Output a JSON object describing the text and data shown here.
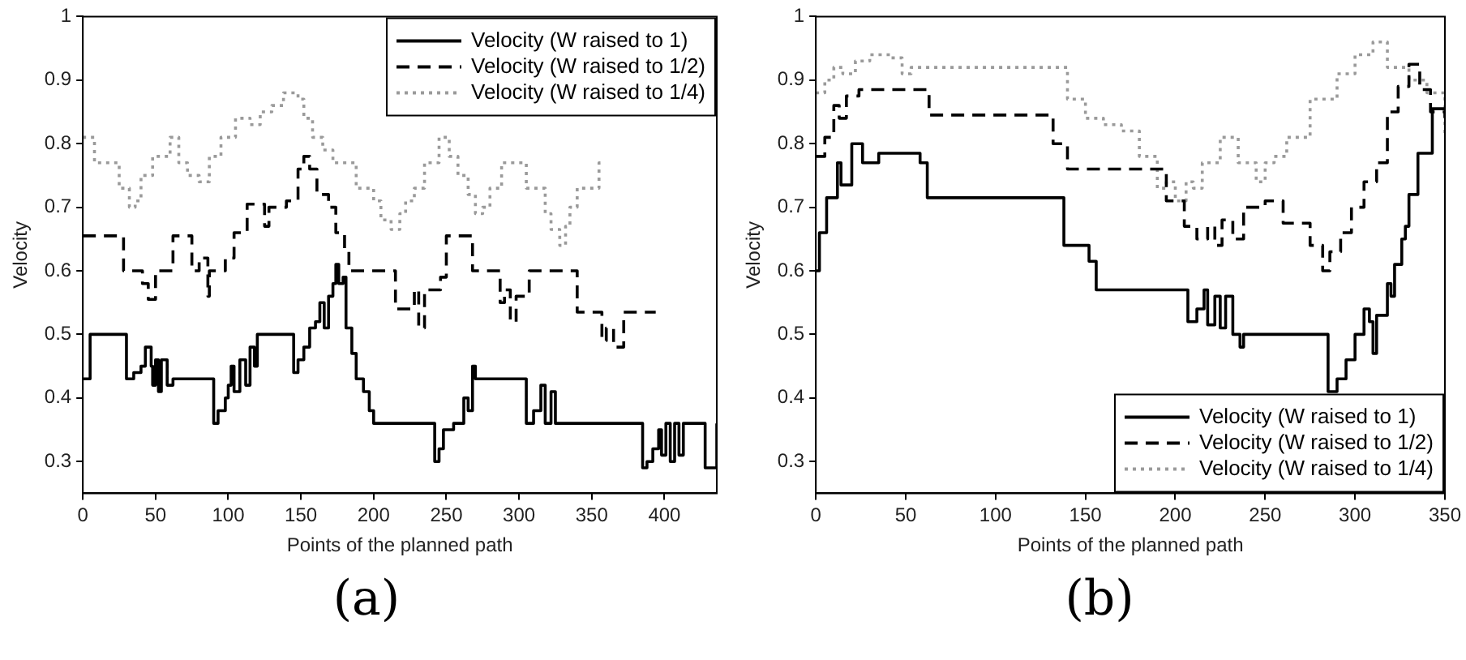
{
  "chart_data": [
    {
      "type": "step",
      "xlabel": "Points of the planned path",
      "ylabel": "Velocity",
      "annotations": [
        "(a)"
      ],
      "xlim": [
        0,
        436
      ],
      "xticks": [
        0,
        50,
        100,
        150,
        200,
        250,
        300,
        350,
        400
      ],
      "ylim": [
        0.25,
        1
      ],
      "yticks": [
        0.3,
        0.4,
        0.5,
        0.6,
        0.7,
        0.8,
        0.9,
        1
      ],
      "grid": false,
      "legend": "top right",
      "marker": "none",
      "series": [
        {
          "name": "Velocity (W raised to 1)",
          "color": "#000000",
          "line_style": "solid",
          "x": [
            0,
            5,
            30,
            35,
            40,
            43,
            47,
            48,
            50,
            52,
            54,
            58,
            62,
            90,
            93,
            98,
            100,
            102,
            104,
            108,
            112,
            115,
            118,
            120,
            145,
            148,
            152,
            156,
            160,
            163,
            166,
            169,
            172,
            174,
            176,
            179,
            181,
            185,
            188,
            193,
            197,
            200,
            242,
            245,
            248,
            255,
            262,
            265,
            268,
            270,
            305,
            310,
            315,
            318,
            322,
            325,
            385,
            388,
            392,
            396,
            398,
            401,
            404,
            407,
            410,
            413,
            428,
            436
          ],
          "values": [
            0.43,
            0.5,
            0.43,
            0.44,
            0.45,
            0.48,
            0.45,
            0.42,
            0.46,
            0.41,
            0.46,
            0.42,
            0.43,
            0.36,
            0.38,
            0.4,
            0.42,
            0.45,
            0.41,
            0.46,
            0.42,
            0.48,
            0.45,
            0.5,
            0.44,
            0.46,
            0.48,
            0.51,
            0.52,
            0.55,
            0.51,
            0.56,
            0.58,
            0.61,
            0.58,
            0.59,
            0.51,
            0.47,
            0.43,
            0.41,
            0.38,
            0.36,
            0.3,
            0.32,
            0.35,
            0.36,
            0.4,
            0.38,
            0.45,
            0.43,
            0.36,
            0.38,
            0.42,
            0.36,
            0.41,
            0.36,
            0.29,
            0.3,
            0.32,
            0.35,
            0.31,
            0.36,
            0.3,
            0.36,
            0.31,
            0.36,
            0.29,
            0.36
          ]
        },
        {
          "name": "Velocity (W raised to 1/2)",
          "color": "#000000",
          "line_style": "dashed",
          "x": [
            0,
            28,
            30,
            41,
            45,
            50,
            62,
            75,
            80,
            86,
            87,
            98,
            104,
            113,
            125,
            128,
            140,
            148,
            152,
            156,
            161,
            169,
            174,
            180,
            183,
            215,
            228,
            231,
            235,
            246,
            250,
            268,
            287,
            290,
            294,
            298,
            307,
            340,
            357,
            360,
            365,
            372,
            394
          ],
          "values": [
            0.655,
            0.6,
            0.6,
            0.58,
            0.555,
            0.6,
            0.655,
            0.6,
            0.62,
            0.56,
            0.6,
            0.62,
            0.66,
            0.705,
            0.67,
            0.7,
            0.71,
            0.76,
            0.78,
            0.76,
            0.72,
            0.7,
            0.66,
            0.635,
            0.6,
            0.54,
            0.57,
            0.51,
            0.57,
            0.59,
            0.655,
            0.6,
            0.55,
            0.57,
            0.52,
            0.56,
            0.6,
            0.535,
            0.49,
            0.51,
            0.48,
            0.535,
            0.535
          ]
        },
        {
          "name": "Velocity (W raised to 1/4)",
          "color": "#9a9a9a",
          "line_style": "dotted",
          "x": [
            0,
            8,
            25,
            32,
            36,
            40,
            48,
            60,
            66,
            72,
            80,
            87,
            95,
            105,
            115,
            122,
            130,
            138,
            148,
            152,
            158,
            165,
            172,
            188,
            200,
            205,
            212,
            218,
            222,
            228,
            235,
            245,
            252,
            258,
            265,
            270,
            275,
            280,
            288,
            298,
            305,
            318,
            322,
            328,
            332,
            335,
            340,
            355,
            358
          ],
          "values": [
            0.81,
            0.77,
            0.73,
            0.7,
            0.71,
            0.75,
            0.78,
            0.81,
            0.77,
            0.75,
            0.74,
            0.78,
            0.81,
            0.84,
            0.83,
            0.85,
            0.86,
            0.88,
            0.87,
            0.84,
            0.81,
            0.79,
            0.77,
            0.73,
            0.71,
            0.68,
            0.665,
            0.69,
            0.71,
            0.73,
            0.77,
            0.81,
            0.78,
            0.75,
            0.72,
            0.69,
            0.7,
            0.73,
            0.77,
            0.77,
            0.73,
            0.69,
            0.665,
            0.64,
            0.67,
            0.7,
            0.73,
            0.77,
            0.77
          ]
        }
      ]
    },
    {
      "type": "step",
      "xlabel": "Points of the planned path",
      "ylabel": "Velocity",
      "annotations": [
        "(b)"
      ],
      "xlim": [
        0,
        350
      ],
      "xticks": [
        0,
        50,
        100,
        150,
        200,
        250,
        300,
        350
      ],
      "ylim": [
        0.25,
        1
      ],
      "yticks": [
        0.3,
        0.4,
        0.5,
        0.6,
        0.7,
        0.8,
        0.9,
        1
      ],
      "grid": false,
      "legend": "bottom right",
      "marker": "none",
      "series": [
        {
          "name": "Velocity (W raised to 1)",
          "color": "#000000",
          "line_style": "solid",
          "x": [
            0,
            2,
            6,
            12,
            14,
            20,
            26,
            35,
            58,
            62,
            138,
            152,
            156,
            207,
            212,
            216,
            218,
            222,
            225,
            228,
            232,
            236,
            238,
            285,
            290,
            295,
            300,
            305,
            308,
            310,
            312,
            318,
            320,
            322,
            326,
            328,
            330,
            335,
            343,
            350
          ],
          "values": [
            0.6,
            0.66,
            0.715,
            0.77,
            0.735,
            0.8,
            0.77,
            0.785,
            0.77,
            0.715,
            0.64,
            0.615,
            0.57,
            0.52,
            0.54,
            0.57,
            0.515,
            0.56,
            0.51,
            0.56,
            0.5,
            0.48,
            0.5,
            0.41,
            0.43,
            0.46,
            0.5,
            0.54,
            0.52,
            0.47,
            0.53,
            0.58,
            0.56,
            0.61,
            0.65,
            0.67,
            0.72,
            0.785,
            0.855,
            0.855
          ]
        },
        {
          "name": "Velocity (W raised to 1/2)",
          "color": "#000000",
          "line_style": "dashed",
          "x": [
            0,
            5,
            10,
            13,
            17,
            24,
            63,
            132,
            140,
            195,
            205,
            212,
            218,
            222,
            226,
            232,
            238,
            250,
            260,
            275,
            282,
            286,
            292,
            298,
            305,
            312,
            318,
            324,
            330,
            336,
            342,
            350
          ],
          "values": [
            0.78,
            0.81,
            0.86,
            0.84,
            0.875,
            0.885,
            0.845,
            0.8,
            0.76,
            0.71,
            0.67,
            0.65,
            0.67,
            0.64,
            0.68,
            0.65,
            0.7,
            0.71,
            0.675,
            0.64,
            0.6,
            0.63,
            0.66,
            0.7,
            0.74,
            0.77,
            0.85,
            0.89,
            0.925,
            0.885,
            0.85,
            0.84
          ]
        },
        {
          "name": "Velocity (W raised to 1/4)",
          "color": "#9a9a9a",
          "line_style": "dotted",
          "x": [
            0,
            5,
            10,
            15,
            22,
            30,
            42,
            48,
            53,
            95,
            140,
            150,
            160,
            170,
            180,
            190,
            195,
            200,
            206,
            210,
            215,
            225,
            235,
            245,
            250,
            255,
            262,
            275,
            290,
            300,
            310,
            318,
            330,
            340,
            350
          ],
          "values": [
            0.88,
            0.9,
            0.92,
            0.91,
            0.93,
            0.94,
            0.935,
            0.91,
            0.92,
            0.92,
            0.87,
            0.84,
            0.83,
            0.82,
            0.78,
            0.73,
            0.74,
            0.71,
            0.74,
            0.73,
            0.77,
            0.81,
            0.77,
            0.74,
            0.77,
            0.78,
            0.81,
            0.87,
            0.91,
            0.94,
            0.96,
            0.92,
            0.9,
            0.88,
            0.81
          ]
        }
      ]
    }
  ]
}
